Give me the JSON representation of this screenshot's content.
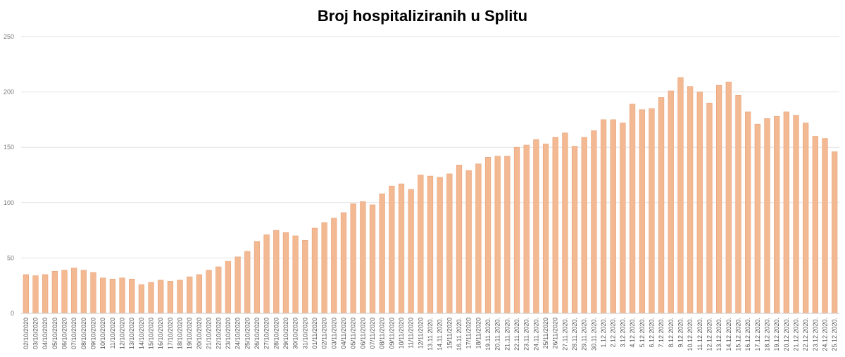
{
  "colors": {
    "bar_fill": "#f2b993",
    "bar_stroke": "#e9a177",
    "grid": "#e3e3e3",
    "axis": "#c8c8c8"
  },
  "chart_data": {
    "type": "bar",
    "title": "Broj hospitaliziranih u Splitu",
    "xlabel": "",
    "ylabel": "",
    "ylim": [
      0,
      250
    ],
    "yticks": [
      0,
      50,
      100,
      150,
      200,
      250
    ],
    "grid": true,
    "legend": "none",
    "categories": [
      "02/10/2020",
      "03/10/2020",
      "04/10/2020",
      "05/10/2020",
      "06/10/2020",
      "07/10/2020",
      "08/10/2020",
      "09/10/2020",
      "10/10/2020",
      "11/10/2020",
      "12/10/2020",
      "13/10/2020",
      "14/10/2020",
      "15/10/2020",
      "16/10/2020",
      "17/10/2020",
      "18/10/2020",
      "19/10/2020",
      "20/10/2020",
      "21/10/2020",
      "22/10/2020",
      "23/10/2020",
      "24/10/2020",
      "25/10/2020",
      "26/10/2020",
      "27/10/2020",
      "28/10/2020",
      "29/10/2020",
      "30/10/2020",
      "31/10/2020",
      "01/11/2020",
      "02/11/2020",
      "03/11/2020",
      "04/11/2020",
      "05/11/2020",
      "06/11/2020",
      "07/11/2020",
      "08/11/2020",
      "09/11/2020",
      "10/11/2020",
      "11/11/2020",
      "12/11/2020",
      "13.11.2020.",
      "14.11.2020.",
      "15/11/2020",
      "16.11.2020.",
      "17/11/2020",
      "18/11/2020",
      "19.11.2020.",
      "20.11.2020.",
      "21.11.2020.",
      "22.11.2020.",
      "23.11.2020.",
      "24.11.2020.",
      "25/11/2020",
      "26/11/2020",
      "27.11.2020.",
      "28.11.2020.",
      "29.11.2020.",
      "30.11.2020.",
      "1.12.2020.",
      "2.12.2020.",
      "3.12.2020.",
      "4.12.2020.",
      "5.12.2020.",
      "6.12.2020.",
      "7.12.2020.",
      "8.12.2020.",
      "9.12.2020.",
      "10.12.2020.",
      "11.12.2020.",
      "12.12.2020.",
      "13.12.2020.",
      "14.12.2020.",
      "15.12.2020.",
      "16.12.2020.",
      "17.12.2020.",
      "18.12.2020.",
      "19.12.2020.",
      "20.12.2020.",
      "21.12.2020.",
      "22.12.2020.",
      "23.12.2020.",
      "24.12.2020.",
      "25.12.2020."
    ],
    "values": [
      35,
      34,
      35,
      38,
      39,
      41,
      39,
      37,
      32,
      31,
      32,
      31,
      26,
      28,
      30,
      29,
      30,
      33,
      35,
      39,
      42,
      47,
      51,
      56,
      65,
      71,
      75,
      73,
      70,
      66,
      77,
      82,
      86,
      91,
      99,
      101,
      98,
      108,
      115,
      117,
      112,
      125,
      124,
      123,
      126,
      134,
      129,
      135,
      141,
      142,
      142,
      150,
      152,
      157,
      153,
      159,
      163,
      151,
      159,
      165,
      175,
      175,
      172,
      189,
      184,
      185,
      195,
      201,
      213,
      205,
      200,
      190,
      206,
      209,
      197,
      182,
      171,
      176,
      178,
      182,
      179,
      172,
      160,
      158,
      146
    ]
  }
}
